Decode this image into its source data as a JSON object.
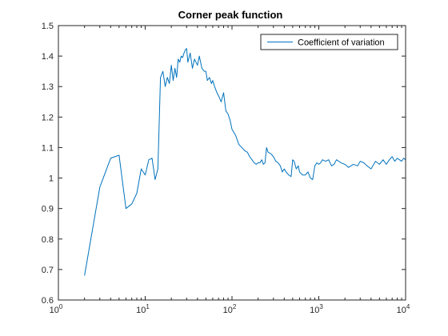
{
  "chart_data": {
    "type": "line",
    "title": "Corner peak function",
    "xlabel": "",
    "ylabel": "",
    "x_scale": "log",
    "xlim": [
      1,
      10000
    ],
    "ylim": [
      0.6,
      1.5
    ],
    "x_ticks": [
      {
        "base": "10",
        "exp": "0"
      },
      {
        "base": "10",
        "exp": "1"
      },
      {
        "base": "10",
        "exp": "2"
      },
      {
        "base": "10",
        "exp": "3"
      },
      {
        "base": "10",
        "exp": "4"
      }
    ],
    "y_ticks": [
      "0.6",
      "0.7",
      "0.8",
      "0.9",
      "1",
      "1.1",
      "1.2",
      "1.3",
      "1.4",
      "1.5"
    ],
    "grid": false,
    "legend_position": "top-right",
    "series": [
      {
        "name": "Coefficient of variation",
        "color": "#0072BD",
        "x": [
          2,
          3,
          4,
          5,
          6,
          7,
          8,
          9,
          10,
          11,
          12,
          13,
          14,
          15,
          16,
          17,
          18,
          19,
          20,
          21,
          22,
          23,
          24,
          25,
          26,
          27,
          28,
          29,
          30,
          31,
          33,
          35,
          37,
          40,
          42,
          45,
          48,
          50,
          52,
          55,
          58,
          60,
          63,
          67,
          70,
          75,
          80,
          85,
          90,
          95,
          100,
          110,
          120,
          130,
          140,
          150,
          160,
          170,
          180,
          190,
          200,
          210,
          220,
          230,
          240,
          250,
          260,
          280,
          300,
          320,
          340,
          360,
          380,
          400,
          420,
          450,
          480,
          500,
          520,
          550,
          580,
          600,
          650,
          700,
          750,
          800,
          850,
          900,
          950,
          1000,
          1050,
          1100,
          1200,
          1300,
          1400,
          1500,
          1600,
          1800,
          2000,
          2200,
          2500,
          2800,
          3000,
          3300,
          3600,
          4000,
          4500,
          5000,
          5500,
          6000,
          6500,
          7000,
          7500,
          8000,
          8500,
          9000,
          9500,
          10000
        ],
        "values": [
          0.68,
          0.97,
          1.065,
          1.075,
          0.9,
          0.915,
          0.95,
          1.03,
          1.01,
          1.06,
          1.065,
          0.995,
          1.03,
          1.33,
          1.35,
          1.3,
          1.33,
          1.31,
          1.37,
          1.32,
          1.36,
          1.33,
          1.39,
          1.38,
          1.4,
          1.395,
          1.41,
          1.42,
          1.425,
          1.38,
          1.41,
          1.36,
          1.39,
          1.37,
          1.4,
          1.36,
          1.35,
          1.35,
          1.32,
          1.33,
          1.31,
          1.32,
          1.3,
          1.28,
          1.27,
          1.25,
          1.28,
          1.22,
          1.21,
          1.19,
          1.16,
          1.14,
          1.11,
          1.1,
          1.09,
          1.085,
          1.07,
          1.06,
          1.05,
          1.045,
          1.05,
          1.05,
          1.06,
          1.045,
          1.05,
          1.1,
          1.085,
          1.08,
          1.07,
          1.055,
          1.05,
          1.04,
          1.02,
          1.03,
          1.02,
          1.01,
          1.005,
          1.06,
          1.055,
          1.03,
          1.04,
          1.02,
          1.01,
          1.01,
          1.02,
          1.0,
          0.995,
          1.04,
          1.05,
          1.045,
          1.05,
          1.06,
          1.055,
          1.06,
          1.04,
          1.045,
          1.06,
          1.05,
          1.045,
          1.035,
          1.045,
          1.04,
          1.055,
          1.05,
          1.04,
          1.03,
          1.055,
          1.045,
          1.06,
          1.045,
          1.06,
          1.07,
          1.055,
          1.065,
          1.06,
          1.055,
          1.065,
          1.06
        ]
      }
    ]
  }
}
